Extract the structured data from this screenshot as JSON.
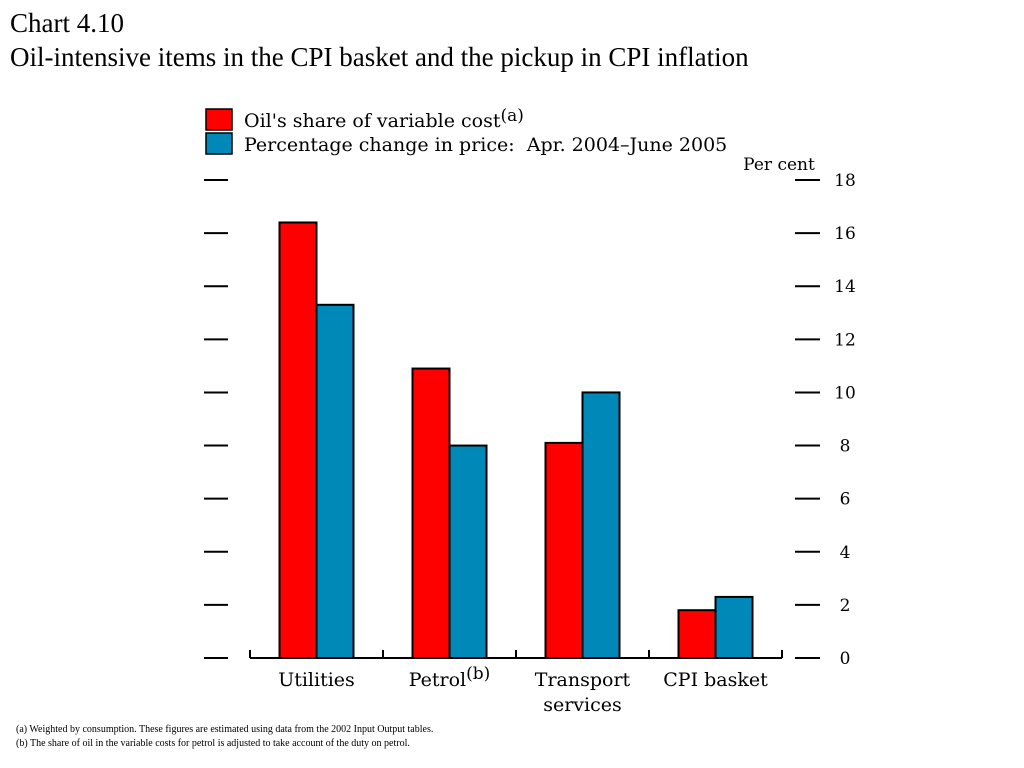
{
  "header": {
    "chart_number": "Chart 4.10",
    "title": "Oil-intensive items in the CPI basket and the pickup in CPI inflation"
  },
  "colors": {
    "oil_share": "#ff0000",
    "price_change": "#0088b8",
    "outline": "#000000"
  },
  "chart_data": {
    "type": "bar",
    "categories": [
      "Utilities",
      "Petrol",
      "Transport services",
      "CPI basket"
    ],
    "category_labels": [
      {
        "lines": [
          "Utilities"
        ],
        "sup": ""
      },
      {
        "lines": [
          "Petrol"
        ],
        "sup": "(b)"
      },
      {
        "lines": [
          "Transport",
          "services"
        ],
        "sup": ""
      },
      {
        "lines": [
          "CPI basket"
        ],
        "sup": ""
      }
    ],
    "series": [
      {
        "name": "Oil's share of variable cost",
        "name_sup": "(a)",
        "values": [
          16.4,
          10.9,
          8.1,
          1.8
        ]
      },
      {
        "name": "Percentage change in price:  Apr. 2004–June 2005",
        "name_sup": "",
        "values": [
          13.3,
          8.0,
          10.0,
          2.3
        ]
      }
    ],
    "ylabel": "Per cent",
    "ylim": [
      0,
      18
    ],
    "yticks": [
      0,
      2,
      4,
      6,
      8,
      10,
      12,
      14,
      16,
      18
    ],
    "ytick_labels": [
      "0",
      "2",
      "4",
      "6",
      "8",
      "10",
      "12",
      "14",
      "16",
      "18"
    ],
    "legend_position": "top-left"
  },
  "footnotes": [
    "(a)  Weighted by consumption.  These figures are estimated using data from the 2002 Input Output tables.",
    "(b)  The share of oil in the variable costs for petrol is adjusted to take account of the duty on petrol."
  ]
}
